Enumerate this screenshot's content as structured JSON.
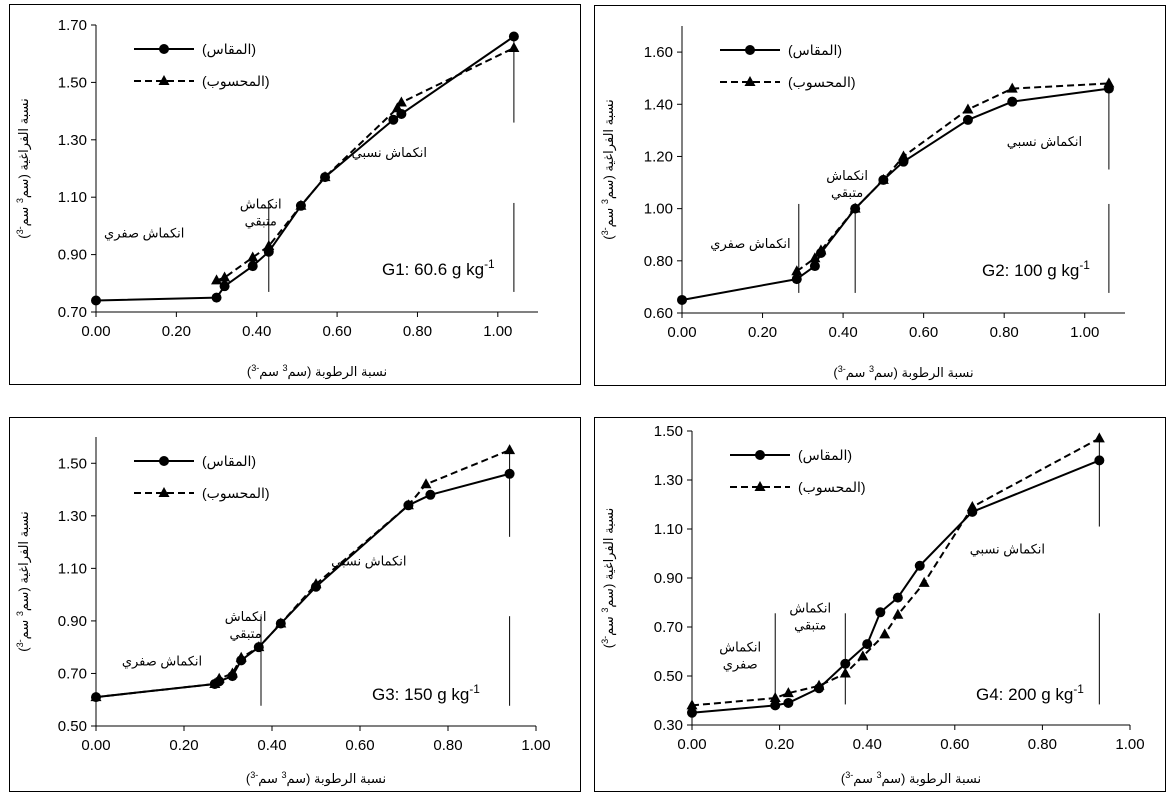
{
  "chart_data": [
    {
      "type": "line",
      "group_label": {
        "main": "G1: 60.6 g kg",
        "sup": "-1"
      },
      "xlabel": {
        "pre": "نسبة الرطوبة (سم",
        "sup1": "3",
        "mid": " سم",
        "sup2": "-3",
        "post": ")"
      },
      "ylabel": {
        "pre": "نسبة الفراغية (سم",
        "sup1": "3",
        "mid": " سم",
        "sup2": "-3",
        "post": ")"
      },
      "xlim": [
        0,
        1.1
      ],
      "ylim": [
        0.7,
        1.7
      ],
      "xticks": [
        0,
        0.2,
        0.4,
        0.6,
        0.8,
        1.0
      ],
      "xtick_labels": [
        "0.00",
        "0.20",
        "0.40",
        "0.60",
        "0.80",
        "1.00"
      ],
      "yticks": [
        0.7,
        0.9,
        1.1,
        1.3,
        1.5,
        1.7
      ],
      "ytick_labels": [
        "0.70",
        "0.90",
        "1.10",
        "1.30",
        "1.50",
        "1.70"
      ],
      "legend": [
        "(المقاس)",
        "(المحسوب)"
      ],
      "series": [
        {
          "marker": "circle",
          "style": "solid",
          "x": [
            0.0,
            0.3,
            0.32,
            0.39,
            0.43,
            0.51,
            0.57,
            0.74,
            0.76,
            1.04
          ],
          "y": [
            0.74,
            0.75,
            0.79,
            0.86,
            0.91,
            1.07,
            1.17,
            1.37,
            1.39,
            1.66
          ]
        },
        {
          "marker": "triangle",
          "style": "dashed",
          "x": [
            0.3,
            0.32,
            0.39,
            0.43,
            0.51,
            0.57,
            0.75,
            0.76,
            1.04
          ],
          "y": [
            0.81,
            0.82,
            0.89,
            0.93,
            1.07,
            1.17,
            1.41,
            1.43,
            1.62
          ]
        }
      ],
      "region_lines": [
        0.43,
        1.04
      ],
      "annotations": [
        {
          "lines": [
            "انكماش صفري"
          ],
          "x": 0.12,
          "y": 0.96
        },
        {
          "lines": [
            "انكماش",
            "متبقي"
          ],
          "x": 0.41,
          "y": 1.06
        },
        {
          "lines": [
            "انكماش نسبي"
          ],
          "x": 0.73,
          "y": 1.24
        }
      ]
    },
    {
      "type": "line",
      "group_label": {
        "main": "G2: 100 g kg",
        "sup": "-1"
      },
      "xlabel": {
        "pre": "نسبة الرطوبة (سم",
        "sup1": "3",
        "mid": " سم",
        "sup2": "-3",
        "post": ")"
      },
      "ylabel": {
        "pre": "نسبة الفراغية (سم",
        "sup1": "3",
        "mid": " سم",
        "sup2": "-3",
        "post": ")"
      },
      "xlim": [
        0,
        1.1
      ],
      "ylim": [
        0.6,
        1.7
      ],
      "xticks": [
        0,
        0.2,
        0.4,
        0.6,
        0.8,
        1.0
      ],
      "xtick_labels": [
        "0.00",
        "0.20",
        "0.40",
        "0.60",
        "0.80",
        "1.00"
      ],
      "yticks": [
        0.6,
        0.8,
        1.0,
        1.2,
        1.4,
        1.6
      ],
      "ytick_labels": [
        "0.60",
        "0.80",
        "1.00",
        "1.20",
        "1.40",
        "1.60"
      ],
      "legend": [
        "(المقاس)",
        "(المحسوب)"
      ],
      "series": [
        {
          "marker": "circle",
          "style": "solid",
          "x": [
            0.0,
            0.285,
            0.33,
            0.345,
            0.43,
            0.5,
            0.55,
            0.71,
            0.82,
            1.06
          ],
          "y": [
            0.65,
            0.73,
            0.78,
            0.83,
            1.0,
            1.11,
            1.18,
            1.34,
            1.41,
            1.46
          ]
        },
        {
          "marker": "triangle",
          "style": "dashed",
          "x": [
            0.285,
            0.33,
            0.345,
            0.43,
            0.5,
            0.55,
            0.71,
            0.82,
            1.06
          ],
          "y": [
            0.76,
            0.81,
            0.84,
            1.0,
            1.11,
            1.2,
            1.38,
            1.46,
            1.48
          ]
        }
      ],
      "region_lines": [
        0.29,
        0.43,
        1.06
      ],
      "annotations": [
        {
          "lines": [
            "انكماش صفري"
          ],
          "x": 0.17,
          "y": 0.85
        },
        {
          "lines": [
            "انكماش",
            "متبقي"
          ],
          "x": 0.41,
          "y": 1.11
        },
        {
          "lines": [
            "انكماش نسبي"
          ],
          "x": 0.9,
          "y": 1.24
        }
      ]
    },
    {
      "type": "line",
      "group_label": {
        "main": "G3: 150 g kg",
        "sup": "-1"
      },
      "xlabel": {
        "pre": "نسبة الرطوبة (سم",
        "sup1": "3",
        "mid": " سم",
        "sup2": "-3",
        "post": ")"
      },
      "ylabel": {
        "pre": "نسبة الفراغية (سم",
        "sup1": "3",
        "mid": " سم",
        "sup2": "-3",
        "post": ")"
      },
      "xlim": [
        0,
        1.0
      ],
      "ylim": [
        0.5,
        1.6
      ],
      "xticks": [
        0,
        0.2,
        0.4,
        0.6,
        0.8,
        1.0
      ],
      "xtick_labels": [
        "0.00",
        "0.20",
        "0.40",
        "0.60",
        "0.80",
        "1.00"
      ],
      "yticks": [
        0.5,
        0.7,
        0.9,
        1.1,
        1.3,
        1.5
      ],
      "ytick_labels": [
        "0.50",
        "0.70",
        "0.90",
        "1.10",
        "1.30",
        "1.50"
      ],
      "legend": [
        "(المقاس)",
        "(المحسوب)"
      ],
      "series": [
        {
          "marker": "circle",
          "style": "solid",
          "x": [
            0.0,
            0.27,
            0.28,
            0.31,
            0.33,
            0.37,
            0.42,
            0.5,
            0.71,
            0.76,
            0.94
          ],
          "y": [
            0.61,
            0.66,
            0.67,
            0.69,
            0.75,
            0.8,
            0.89,
            1.03,
            1.34,
            1.38,
            1.46
          ]
        },
        {
          "marker": "triangle",
          "style": "dashed",
          "x": [
            0.0,
            0.27,
            0.28,
            0.31,
            0.33,
            0.37,
            0.42,
            0.5,
            0.71,
            0.75,
            0.94
          ],
          "y": [
            0.61,
            0.66,
            0.68,
            0.7,
            0.76,
            0.8,
            0.89,
            1.04,
            1.34,
            1.42,
            1.55
          ]
        }
      ],
      "region_lines": [
        0.375,
        0.94
      ],
      "annotations": [
        {
          "lines": [
            "انكماش صفري"
          ],
          "x": 0.15,
          "y": 0.73
        },
        {
          "lines": [
            "انكماش",
            "متبقي"
          ],
          "x": 0.34,
          "y": 0.9
        },
        {
          "lines": [
            "انكماش نسبي"
          ],
          "x": 0.62,
          "y": 1.11
        }
      ]
    },
    {
      "type": "line",
      "group_label": {
        "main": "G4: 200 g kg",
        "sup": "-1"
      },
      "xlabel": {
        "pre": "نسبة الرطوبة (سم",
        "sup1": "3",
        "mid": " سم",
        "sup2": "-3",
        "post": ")"
      },
      "ylabel": {
        "pre": "نسبة الفراغية (سم",
        "sup1": "3",
        "mid": " سم",
        "sup2": "-3",
        "post": ")"
      },
      "xlim": [
        0,
        1.0
      ],
      "ylim": [
        0.3,
        1.5
      ],
      "xticks": [
        0,
        0.2,
        0.4,
        0.6,
        0.8,
        1.0
      ],
      "xtick_labels": [
        "0.00",
        "0.20",
        "0.40",
        "0.60",
        "0.80",
        "1.00"
      ],
      "yticks": [
        0.3,
        0.5,
        0.7,
        0.9,
        1.1,
        1.3,
        1.5
      ],
      "ytick_labels": [
        "0.30",
        "0.50",
        "0.70",
        "0.90",
        "1.10",
        "1.30",
        "1.50"
      ],
      "legend": [
        "(المقاس)",
        "(المحسوب)"
      ],
      "series": [
        {
          "marker": "circle",
          "style": "solid",
          "x": [
            0.0,
            0.19,
            0.22,
            0.29,
            0.35,
            0.4,
            0.43,
            0.47,
            0.52,
            0.64,
            0.93
          ],
          "y": [
            0.35,
            0.38,
            0.39,
            0.45,
            0.55,
            0.63,
            0.76,
            0.82,
            0.95,
            1.17,
            1.38
          ]
        },
        {
          "marker": "triangle",
          "style": "dashed",
          "x": [
            0.0,
            0.19,
            0.22,
            0.29,
            0.35,
            0.39,
            0.44,
            0.47,
            0.53,
            0.64,
            0.93
          ],
          "y": [
            0.38,
            0.41,
            0.43,
            0.46,
            0.51,
            0.58,
            0.67,
            0.75,
            0.88,
            1.19,
            1.47
          ]
        }
      ],
      "region_lines": [
        0.19,
        0.35,
        0.93
      ],
      "annotations": [
        {
          "lines": [
            "انكماش",
            "صفري"
          ],
          "x": 0.11,
          "y": 0.6
        },
        {
          "lines": [
            "انكماش",
            "متبقي"
          ],
          "x": 0.27,
          "y": 0.76
        },
        {
          "lines": [
            "انكماش  نسبي"
          ],
          "x": 0.72,
          "y": 1.0
        }
      ]
    }
  ]
}
